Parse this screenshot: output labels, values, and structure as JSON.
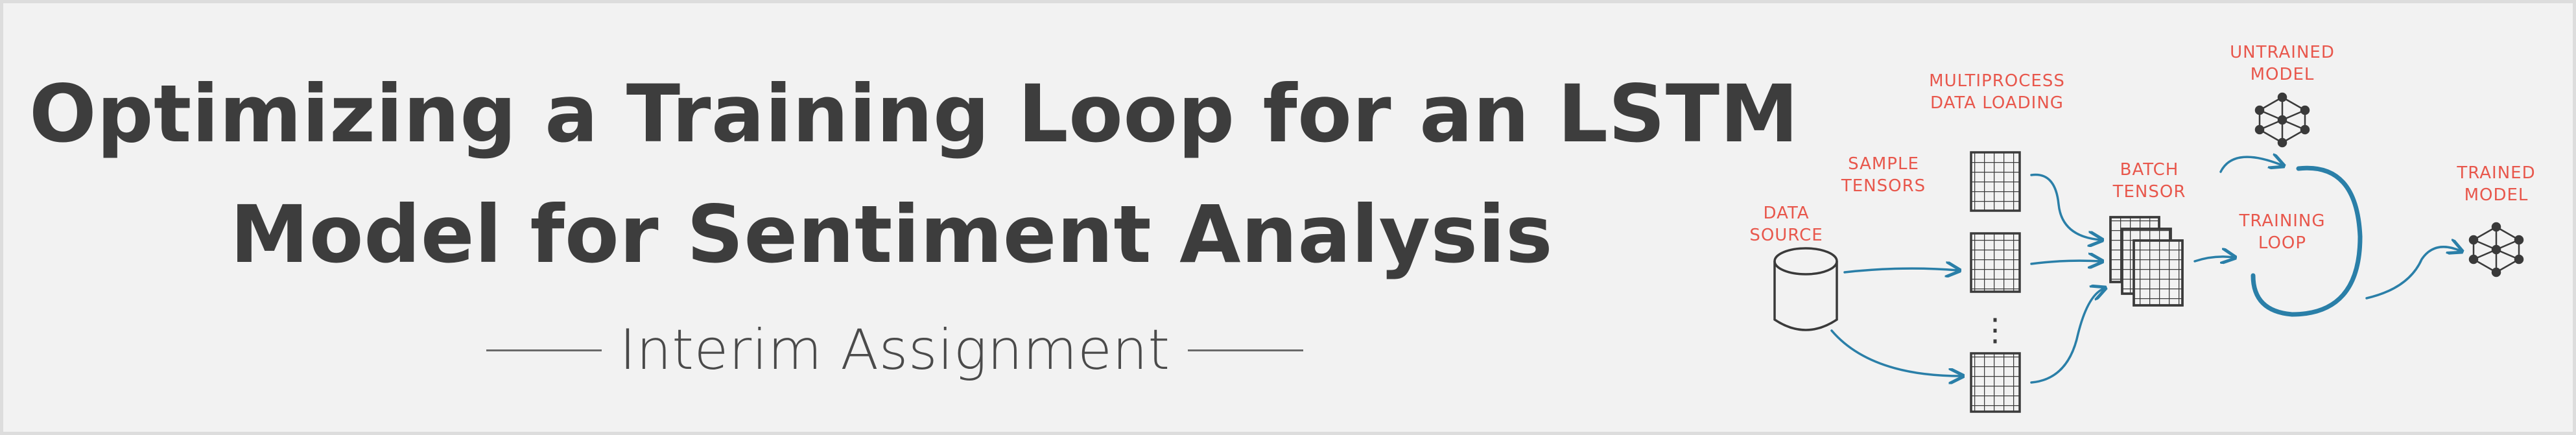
{
  "title": {
    "line1": "Optimizing a Training Loop for an LSTM",
    "line2": "Model for Sentiment Analysis"
  },
  "subtitle": "Interim Assignment",
  "diagram": {
    "labels": {
      "data_source": [
        "DATA",
        "SOURCE"
      ],
      "sample_tensors": [
        "SAMPLE",
        "TENSORS"
      ],
      "multiprocess": [
        "MULTIPROCESS",
        "DATA LOADING"
      ],
      "batch_tensor": [
        "BATCH",
        "TENSOR"
      ],
      "untrained_model": [
        "UNTRAINED",
        "MODEL"
      ],
      "training_loop": [
        "TRAINING",
        "LOOP"
      ],
      "trained_model": [
        "TRAINED",
        "MODEL"
      ]
    },
    "ellipsis": "⋮",
    "colors": {
      "label": "#e8574c",
      "arrow": "#2a7fa8",
      "sketch": "#3a3a3a",
      "title": "#3d3d3d",
      "background": "#f2f2f2"
    }
  }
}
